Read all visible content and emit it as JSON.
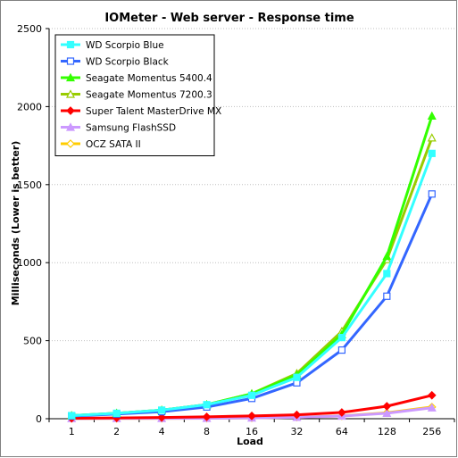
{
  "chart_data": {
    "type": "line",
    "title": "IOMeter - Web server - Response time",
    "xlabel": "Load",
    "ylabel": "Milliseconds (Lower is better)",
    "categories": [
      "1",
      "2",
      "4",
      "8",
      "16",
      "32",
      "64",
      "128",
      "256"
    ],
    "ylim": [
      0,
      2500
    ],
    "yticks": [
      0,
      500,
      1000,
      1500,
      2000,
      2500
    ],
    "grid": "horizontal",
    "legend_position": "top-left",
    "series": [
      {
        "name": "WD Scorpio Blue",
        "color": "#33ffff",
        "marker": "filled-square",
        "values": [
          20,
          35,
          55,
          90,
          150,
          265,
          520,
          930,
          1700
        ]
      },
      {
        "name": "WD Scorpio Black",
        "color": "#3366ff",
        "marker": "open-square",
        "values": [
          17,
          30,
          45,
          75,
          130,
          230,
          440,
          785,
          1440
        ]
      },
      {
        "name": "Seagate Momentus 5400.4",
        "color": "#33ff00",
        "marker": "filled-triangle",
        "values": [
          20,
          35,
          55,
          90,
          160,
          280,
          540,
          1040,
          1940
        ]
      },
      {
        "name": "Seagate Momentus 7200.3",
        "color": "#99cc00",
        "marker": "open-triangle",
        "values": [
          20,
          35,
          55,
          90,
          160,
          290,
          560,
          1020,
          1800
        ]
      },
      {
        "name": "Super Talent MasterDrive MX",
        "color": "#ff0000",
        "marker": "diamond",
        "values": [
          3,
          5,
          8,
          12,
          18,
          25,
          40,
          80,
          150
        ]
      },
      {
        "name": "Samsung FlashSSD",
        "color": "#cc99ff",
        "marker": "filled-triangle",
        "values": [
          1,
          2,
          2,
          3,
          5,
          9,
          17,
          35,
          70
        ]
      },
      {
        "name": "OCZ SATA II",
        "color": "#ffcc00",
        "marker": "open-diamond",
        "values": [
          1,
          2,
          2,
          3,
          5,
          10,
          18,
          38,
          75
        ]
      }
    ]
  }
}
